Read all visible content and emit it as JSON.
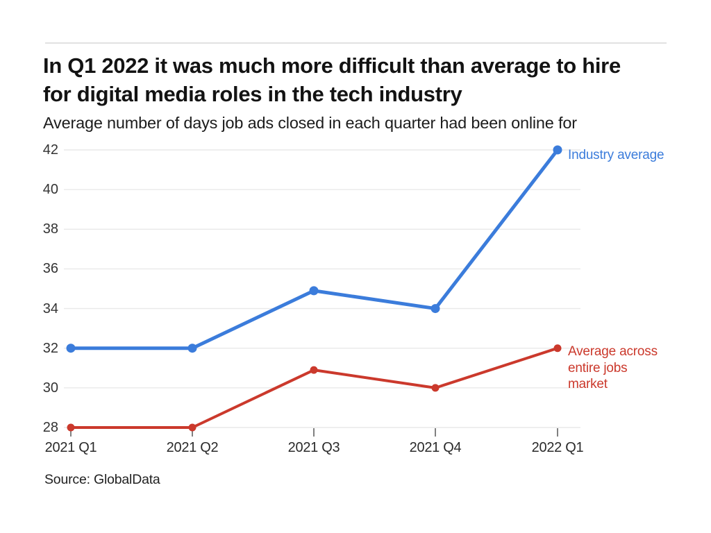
{
  "source_note": "Source: GlobalData",
  "colors": {
    "industry_blue": "#3b7cdb",
    "market_red": "#cb392c",
    "gridline": "#e9e9e9",
    "axis_tick": "#555555",
    "divider": "#e1e1e1",
    "title_text": "#131313",
    "tick_text": "#333333"
  },
  "chart_data": {
    "type": "line",
    "title": "In Q1 2022 it was much more difficult than average to hire for digital media roles in the tech industry",
    "subtitle": "Average number of days job ads closed in each quarter had been online for",
    "xlabel": "",
    "ylabel": "",
    "categories": [
      "2021 Q1",
      "2021 Q2",
      "2021 Q3",
      "2021 Q4",
      "2022 Q1"
    ],
    "series": [
      {
        "name": "Industry average",
        "color": "#3b7cdb",
        "values": [
          32,
          32,
          34.9,
          34,
          42
        ]
      },
      {
        "name": "Average across entire jobs market",
        "color": "#cb392c",
        "values": [
          28,
          28,
          30.9,
          30,
          32
        ]
      }
    ],
    "ylim": [
      28,
      42
    ],
    "yticks": [
      28,
      30,
      32,
      34,
      36,
      38,
      40,
      42
    ],
    "grid": "horizontal",
    "legend_position": "right-of-last-point"
  }
}
